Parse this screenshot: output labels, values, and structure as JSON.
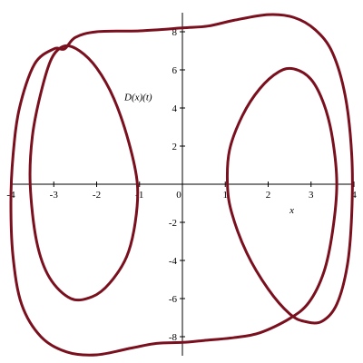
{
  "chart_data": {
    "type": "line",
    "title": "",
    "xlabel": "x",
    "ylabel": "D(x)(t)",
    "xlim": [
      -4,
      4
    ],
    "ylim": [
      -9,
      9
    ],
    "x_ticks": [
      -4,
      -3,
      -2,
      -1,
      0,
      1,
      2,
      3,
      4
    ],
    "x_tick_labels": [
      "-4",
      "-3",
      "-2",
      "-1",
      "0",
      "1",
      "2",
      "3",
      "4"
    ],
    "y_ticks": [
      -8,
      -6,
      -4,
      -2,
      2,
      4,
      6,
      8
    ],
    "y_tick_labels": [
      "-8",
      "-6",
      "-4",
      "-2",
      "2",
      "4",
      "6",
      "8"
    ],
    "grid": false,
    "line_color": "#7a0f1e",
    "series": [
      {
        "values": [
          [
            -3.55,
            0
          ],
          [
            -3.5,
            2.5
          ],
          [
            -3.3,
            4.8
          ],
          [
            -3.05,
            6.6
          ],
          [
            -2.75,
            7.25
          ],
          [
            -2.4,
            7.0
          ],
          [
            -2.0,
            6.1
          ],
          [
            -1.6,
            4.5
          ],
          [
            -1.25,
            2.2
          ],
          [
            -1.05,
            0
          ],
          [
            -1.1,
            -2.0
          ],
          [
            -1.3,
            -3.8
          ],
          [
            -1.7,
            -5.2
          ],
          [
            -2.1,
            -5.9
          ],
          [
            -2.6,
            -6.0
          ],
          [
            -3.1,
            -4.9
          ],
          [
            -3.4,
            -3.0
          ],
          [
            -3.55,
            0
          ]
        ]
      },
      {
        "values": [
          [
            -2.75,
            7.1
          ],
          [
            -2.5,
            7.7
          ],
          [
            -2.0,
            8.0
          ],
          [
            -1.0,
            8.05
          ],
          [
            0,
            8.2
          ],
          [
            0.6,
            8.3
          ],
          [
            1.2,
            8.6
          ],
          [
            2.0,
            8.9
          ],
          [
            2.6,
            8.75
          ],
          [
            3.1,
            8.1
          ],
          [
            3.5,
            6.9
          ],
          [
            3.8,
            4.6
          ],
          [
            3.95,
            1.5
          ],
          [
            3.95,
            -1.5
          ],
          [
            3.85,
            -4.2
          ],
          [
            3.6,
            -6.3
          ],
          [
            3.25,
            -7.2
          ],
          [
            2.85,
            -7.2
          ],
          [
            2.5,
            -6.8
          ],
          [
            2.0,
            -5.5
          ],
          [
            1.5,
            -3.6
          ],
          [
            1.15,
            -1.5
          ],
          [
            1.05,
            0
          ],
          [
            1.1,
            1.8
          ],
          [
            1.4,
            3.6
          ],
          [
            1.8,
            5.0
          ],
          [
            2.25,
            5.9
          ],
          [
            2.6,
            6.05
          ],
          [
            3.0,
            5.5
          ],
          [
            3.3,
            4.2
          ],
          [
            3.5,
            2.4
          ],
          [
            3.6,
            0
          ],
          [
            3.5,
            -2.5
          ],
          [
            3.3,
            -4.6
          ],
          [
            2.95,
            -6.2
          ],
          [
            2.5,
            -7.05
          ],
          [
            1.8,
            -7.8
          ],
          [
            1.2,
            -8.05
          ],
          [
            0.5,
            -8.2
          ],
          [
            0,
            -8.3
          ],
          [
            -0.6,
            -8.35
          ],
          [
            -1.2,
            -8.6
          ],
          [
            -2.0,
            -8.95
          ],
          [
            -2.7,
            -8.8
          ],
          [
            -3.3,
            -8.0
          ],
          [
            -3.75,
            -6.3
          ],
          [
            -3.95,
            -3.8
          ],
          [
            -4.0,
            -1.0
          ],
          [
            -3.95,
            1.5
          ],
          [
            -3.8,
            4.0
          ],
          [
            -3.45,
            6.3
          ],
          [
            -3.0,
            7.1
          ],
          [
            -2.75,
            7.1
          ]
        ]
      }
    ]
  }
}
